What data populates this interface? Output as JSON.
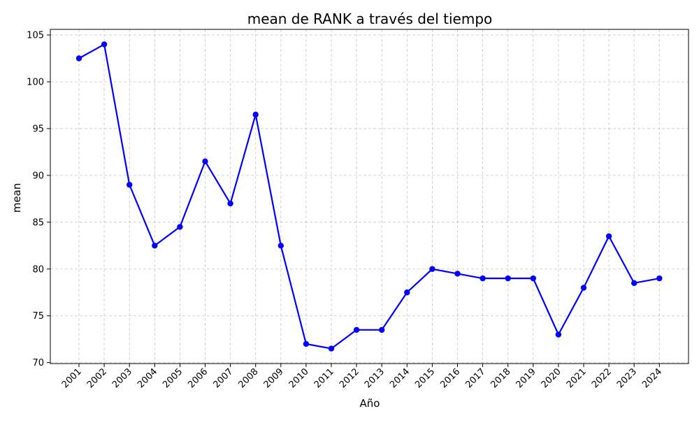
{
  "chart_data": {
    "type": "line",
    "title": "mean de RANK a través del tiempo",
    "xlabel": "Año",
    "ylabel": "mean",
    "categories": [
      "2001",
      "2002",
      "2003",
      "2004",
      "2005",
      "2006",
      "2007",
      "2008",
      "2009",
      "2010",
      "2011",
      "2012",
      "2013",
      "2014",
      "2015",
      "2016",
      "2017",
      "2018",
      "2019",
      "2020",
      "2021",
      "2022",
      "2023",
      "2024"
    ],
    "series": [
      {
        "values": [
          102.5,
          104,
          89,
          82.5,
          84.5,
          91.5,
          87,
          96.5,
          82.5,
          72,
          71.5,
          73.5,
          73.5,
          77.5,
          80,
          79.5,
          79,
          79,
          79,
          73,
          78,
          83.5,
          78.5,
          79
        ],
        "color": "#0000ff"
      }
    ],
    "yticks": [
      70,
      75,
      80,
      85,
      90,
      95,
      100,
      105
    ],
    "ylim": [
      69.9,
      105.6
    ],
    "grid": true,
    "grid_style": "dashed",
    "legend": false
  }
}
